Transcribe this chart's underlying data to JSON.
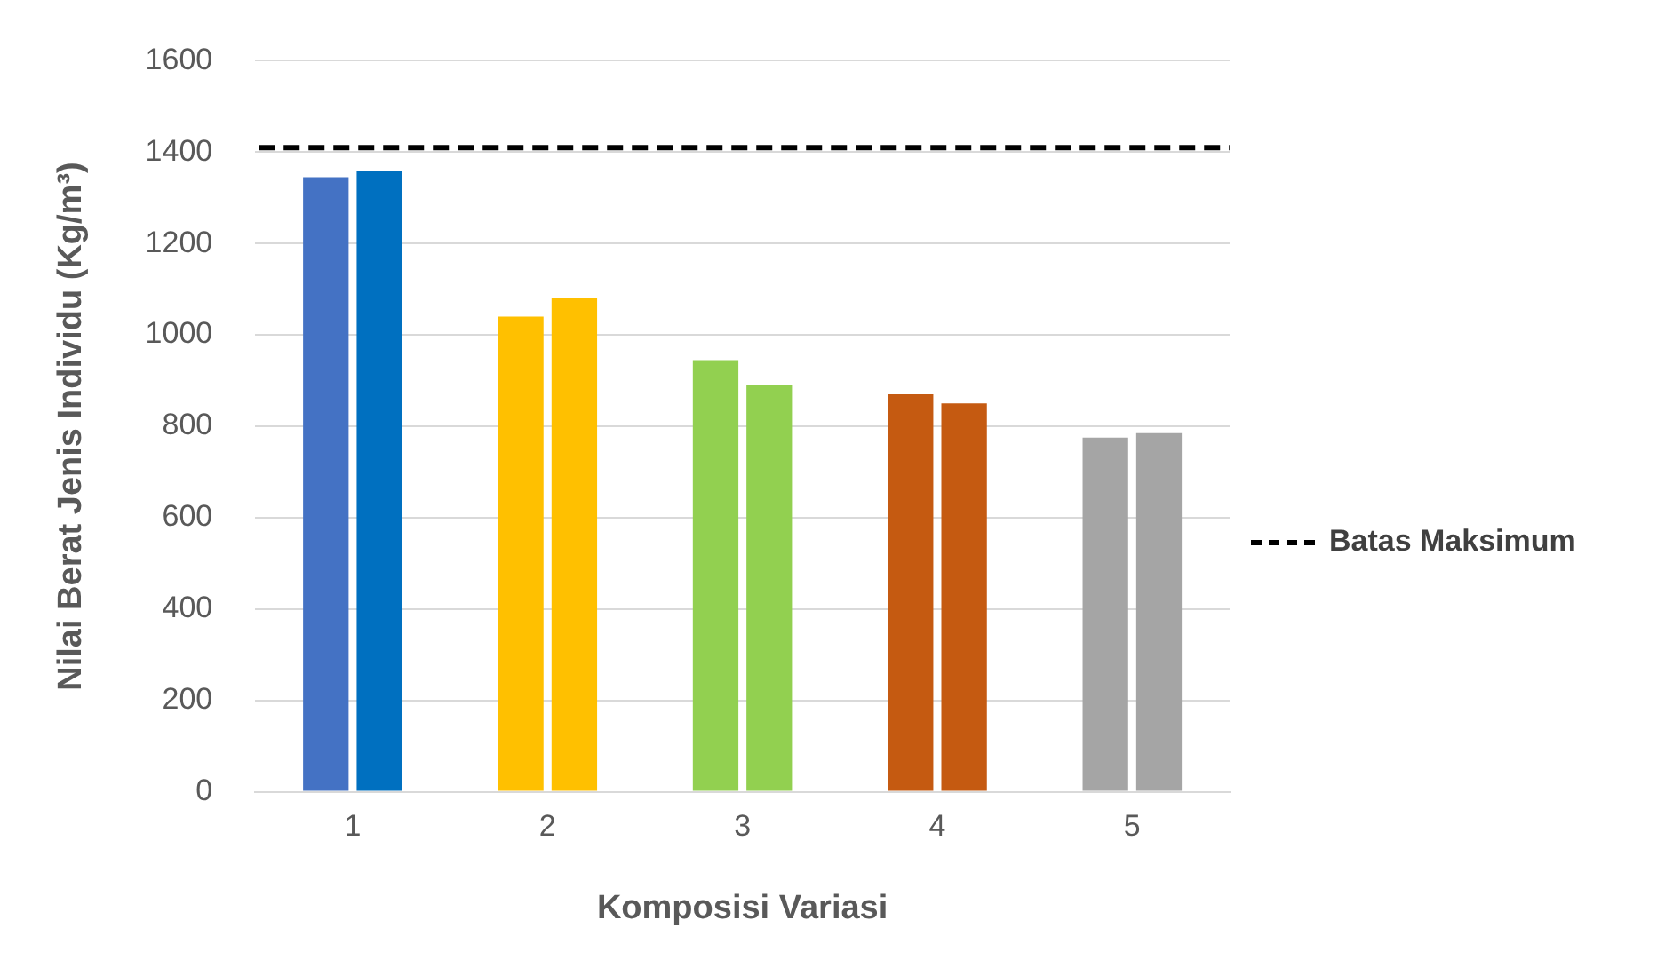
{
  "chart_data": {
    "type": "bar",
    "xlabel": "Komposisi Variasi",
    "ylabel": "Nilai Berat Jenis Individu (Kg/m³)",
    "categories": [
      "1",
      "2",
      "3",
      "4",
      "5"
    ],
    "series": [
      {
        "colors": [
          "#4472c4",
          "#ffc000",
          "#92d050",
          "#c55a11",
          "#a5a5a5"
        ],
        "values": [
          1345,
          1040,
          945,
          870,
          775
        ]
      },
      {
        "colors": [
          "#0070c0",
          "#ffc000",
          "#92d050",
          "#c55a11",
          "#a5a5a5"
        ],
        "values": [
          1360,
          1080,
          890,
          850,
          785
        ]
      }
    ],
    "ylim": [
      0,
      1600
    ],
    "yticks": [
      0,
      200,
      400,
      600,
      800,
      1000,
      1200,
      1400,
      1600
    ],
    "grid": "y",
    "ref_lines": [
      {
        "axis": "y",
        "value": 1410,
        "label": "Batas Maksimum",
        "color": "#000000",
        "line_style": "dashed"
      }
    ],
    "legend": "right"
  }
}
